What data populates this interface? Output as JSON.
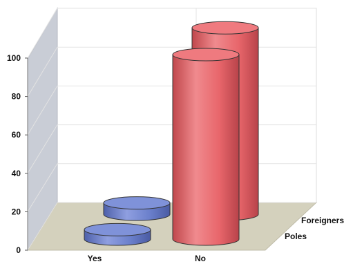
{
  "chart_data": {
    "type": "bar",
    "style": "3d-cylinder",
    "categories": [
      "Yes",
      "No"
    ],
    "series": [
      {
        "name": "Poles",
        "values": [
          5,
          98
        ],
        "color": "#e8666b"
      },
      {
        "name": "Foreigners",
        "values": [
          6,
          99
        ],
        "color": "#6a7fcb"
      }
    ],
    "bar_colors": {
      "Yes": "#6a7fcb",
      "No": "#e8666b"
    },
    "ylim": [
      0,
      100
    ],
    "yticks": [
      "0",
      "20",
      "40",
      "60",
      "80",
      "100"
    ],
    "grid": true,
    "legend": "depth-axis-right",
    "title": "",
    "xlabel": "",
    "ylabel": ""
  }
}
